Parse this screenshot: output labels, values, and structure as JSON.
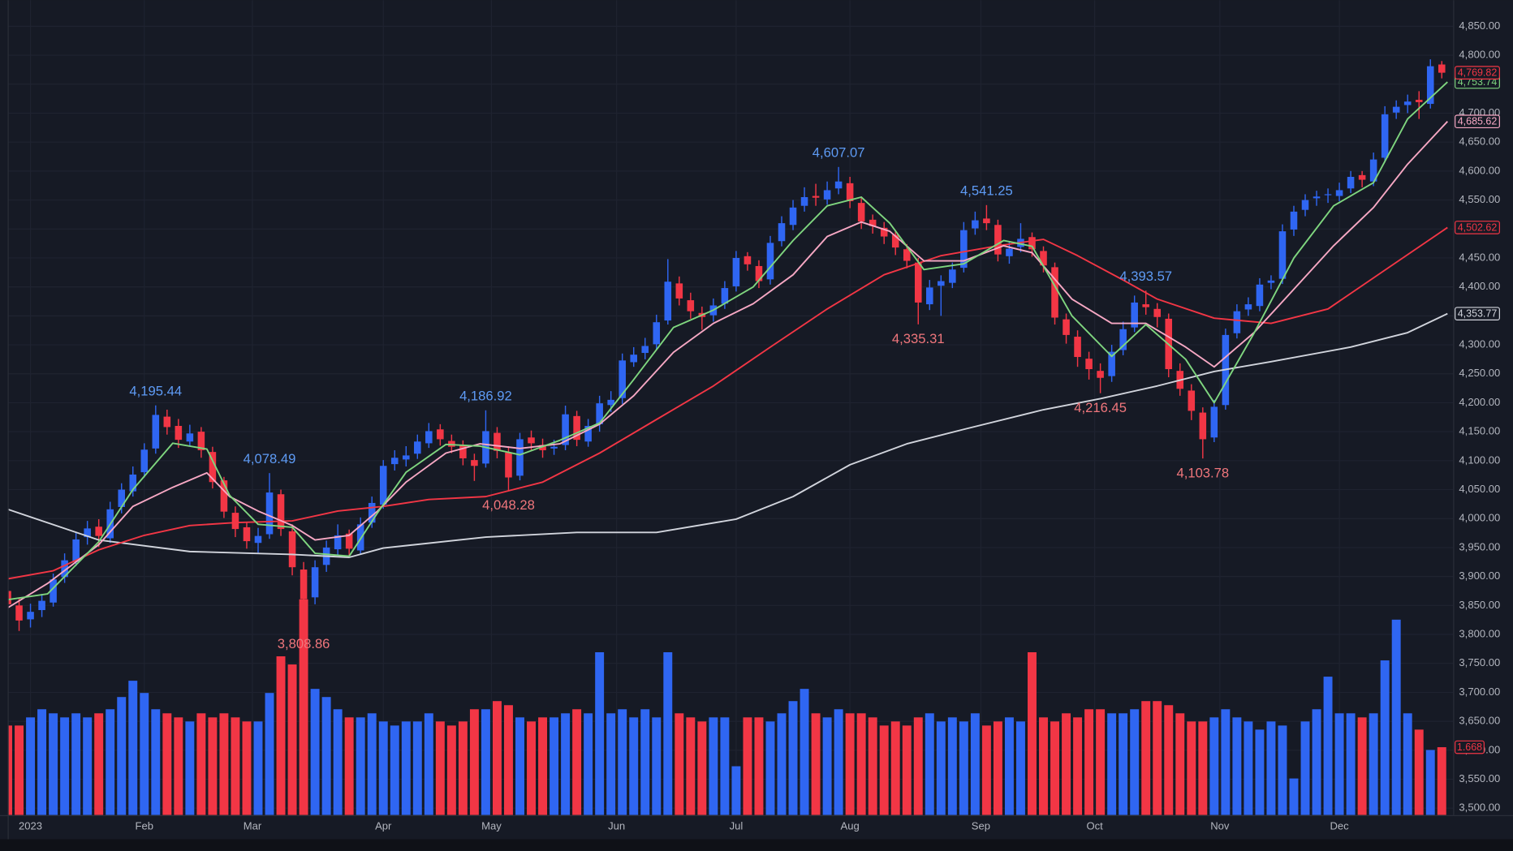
{
  "chart_data": {
    "type": "candlestick",
    "xlim": [
      -4,
      250
    ],
    "ylim": [
      3488,
      4895
    ],
    "grid": true,
    "up_color": "#2f66f2",
    "down_color": "#f23645",
    "xticks": [
      {
        "value": 0,
        "label": "2023"
      },
      {
        "value": 20,
        "label": "Feb"
      },
      {
        "value": 39,
        "label": "Mar"
      },
      {
        "value": 62,
        "label": "Apr"
      },
      {
        "value": 81,
        "label": "May"
      },
      {
        "value": 103,
        "label": "Jun"
      },
      {
        "value": 124,
        "label": "Jul"
      },
      {
        "value": 144,
        "label": "Aug"
      },
      {
        "value": 167,
        "label": "Sep"
      },
      {
        "value": 187,
        "label": "Oct"
      },
      {
        "value": 209,
        "label": "Nov"
      },
      {
        "value": 230,
        "label": "Dec"
      }
    ],
    "yticks": [
      {
        "value": 3500,
        "label": "3,500.00"
      },
      {
        "value": 3550,
        "label": "3,550.00"
      },
      {
        "value": 3600,
        "label": "3,600.00"
      },
      {
        "value": 3650,
        "label": "3,650.00"
      },
      {
        "value": 3700,
        "label": "3,700.00"
      },
      {
        "value": 3750,
        "label": "3,750.00"
      },
      {
        "value": 3800,
        "label": "3,800.00"
      },
      {
        "value": 3850,
        "label": "3,850.00"
      },
      {
        "value": 3900,
        "label": "3,900.00"
      },
      {
        "value": 3950,
        "label": "3,950.00"
      },
      {
        "value": 4000,
        "label": "4,000.00"
      },
      {
        "value": 4050,
        "label": "4,050.00"
      },
      {
        "value": 4100,
        "label": "4,100.00"
      },
      {
        "value": 4150,
        "label": "4,150.00"
      },
      {
        "value": 4200,
        "label": "4,200.00"
      },
      {
        "value": 4250,
        "label": "4,250.00"
      },
      {
        "value": 4300,
        "label": "4,300.00"
      },
      {
        "value": 4350,
        "label": "4,350.00"
      },
      {
        "value": 4400,
        "label": "4,400.00"
      },
      {
        "value": 4450,
        "label": "4,450.00"
      },
      {
        "value": 4500,
        "label": "4,500.00"
      },
      {
        "value": 4550,
        "label": "4,550.00"
      },
      {
        "value": 4600,
        "label": "4,600.00"
      },
      {
        "value": 4650,
        "label": "4,650.00"
      },
      {
        "value": 4700,
        "label": "4,700.00"
      },
      {
        "value": 4750,
        "label": "4,750.00"
      },
      {
        "value": 4800,
        "label": "4,800.00"
      },
      {
        "value": 4850,
        "label": "4,850.00"
      }
    ],
    "candles": {
      "x": [
        -4,
        -2,
        0,
        2,
        4,
        6,
        8,
        10,
        12,
        14,
        16,
        18,
        20,
        22,
        24,
        26,
        28,
        30,
        32,
        34,
        36,
        38,
        40,
        42,
        44,
        46,
        48,
        50,
        52,
        54,
        56,
        58,
        60,
        62,
        64,
        66,
        68,
        70,
        72,
        74,
        76,
        78,
        80,
        82,
        84,
        86,
        88,
        90,
        92,
        94,
        96,
        98,
        100,
        102,
        104,
        106,
        108,
        110,
        112,
        114,
        116,
        118,
        120,
        122,
        124,
        126,
        128,
        130,
        132,
        134,
        136,
        138,
        140,
        142,
        144,
        146,
        148,
        150,
        152,
        154,
        156,
        158,
        160,
        162,
        164,
        166,
        168,
        170,
        172,
        174,
        176,
        178,
        180,
        182,
        184,
        186,
        188,
        190,
        192,
        194,
        196,
        198,
        200,
        202,
        204,
        206,
        208,
        210,
        212,
        214,
        216,
        218,
        220,
        222,
        224,
        226,
        228,
        230,
        232,
        234,
        236,
        238,
        240,
        242,
        244,
        246,
        248
      ],
      "open": [
        3875,
        3850,
        3826,
        3842,
        3855,
        3899,
        3925,
        3968,
        3986,
        3966,
        4020,
        4047,
        4080,
        4121,
        4176,
        4160,
        4133,
        4150,
        4115,
        4066,
        4010,
        3985,
        3958,
        3973,
        4042,
        3978,
        3912,
        3864,
        3920,
        3947,
        3974,
        3945,
        3993,
        4024,
        4094,
        4102,
        4112,
        4130,
        4154,
        4134,
        4127,
        4101,
        4095,
        4148,
        4114,
        4074,
        4140,
        4127,
        4121,
        4127,
        4177,
        4133,
        4163,
        4196,
        4208,
        4270,
        4286,
        4301,
        4342,
        4406,
        4377,
        4355,
        4351,
        4371,
        4401,
        4453,
        4436,
        4413,
        4479,
        4507,
        4540,
        4557,
        4551,
        4570,
        4579,
        4545,
        4516,
        4502,
        4490,
        4465,
        4442,
        4370,
        4402,
        4407,
        4433,
        4501,
        4518,
        4507,
        4453,
        4469,
        4486,
        4462,
        4434,
        4344,
        4314,
        4276,
        4255,
        4246,
        4291,
        4330,
        4370,
        4362,
        4345,
        4255,
        4221,
        4183,
        4140,
        4196,
        4320,
        4361,
        4367,
        4407,
        4414,
        4499,
        4533,
        4553,
        4559,
        4557,
        4570,
        4593,
        4582,
        4623,
        4701,
        4714,
        4723,
        4716,
        4784
      ],
      "high": [
        3884,
        3862,
        3853,
        3870,
        3905,
        3940,
        3975,
        3996,
        3999,
        4029,
        4061,
        4090,
        4130,
        4195.44,
        4188,
        4172,
        4162,
        4158,
        4124,
        4072,
        4021,
        3993,
        3984,
        4078.49,
        4050,
        3990,
        3925,
        3928,
        3962,
        3990,
        3981,
        4002,
        4038,
        4101,
        4118,
        4125,
        4145,
        4165,
        4163,
        4145,
        4135,
        4112,
        4186.92,
        4158,
        4125,
        4148,
        4152,
        4138,
        4136,
        4195,
        4186,
        4172,
        4212,
        4220,
        4285,
        4296,
        4312,
        4352,
        4448,
        4418,
        4390,
        4366,
        4380,
        4410,
        4462,
        4460,
        4446,
        4488,
        4522,
        4550,
        4572,
        4578,
        4582,
        4607.07,
        4590,
        4556,
        4525,
        4512,
        4498,
        4474,
        4450,
        4412,
        4420,
        4442,
        4512,
        4530,
        4541.25,
        4516,
        4478,
        4510,
        4494,
        4470,
        4442,
        4354,
        4325,
        4288,
        4268,
        4300,
        4340,
        4385,
        4393.57,
        4372,
        4354,
        4268,
        4232,
        4192,
        4205,
        4328,
        4370,
        4382,
        4415,
        4420,
        4508,
        4540,
        4560,
        4566,
        4570,
        4580,
        4600,
        4600,
        4632,
        4712,
        4722,
        4732,
        4738,
        4793,
        4790
      ],
      "low": [
        3841,
        3806,
        3812,
        3830,
        3848,
        3889,
        3918,
        3955,
        3951,
        3958,
        4009,
        4038,
        4071,
        4112,
        4145,
        4122,
        4125,
        4105,
        4052,
        4001,
        3968,
        3948,
        3941,
        3965,
        3970,
        3902,
        3808.86,
        3852,
        3908,
        3938,
        3935,
        3939,
        3984,
        4017,
        4083,
        4090,
        4103,
        4122,
        4126,
        4113,
        4092,
        4065,
        4088,
        4104,
        4048.28,
        4066,
        4118,
        4105,
        4110,
        4118,
        4125,
        4124,
        4150,
        4184,
        4198,
        4262,
        4275,
        4292,
        4335,
        4368,
        4345,
        4326,
        4340,
        4362,
        4392,
        4428,
        4398,
        4404,
        4470,
        4498,
        4530,
        4540,
        4542,
        4560,
        4536,
        4500,
        4492,
        4474,
        4455,
        4432,
        4335.31,
        4360,
        4350,
        4398,
        4425,
        4490,
        4498,
        4444,
        4440,
        4460,
        4452,
        4425,
        4335,
        4302,
        4262,
        4240,
        4216.45,
        4236,
        4282,
        4322,
        4352,
        4330,
        4244,
        4212,
        4170,
        4103.78,
        4132,
        4188,
        4311,
        4350,
        4358,
        4396,
        4405,
        4488,
        4522,
        4540,
        4545,
        4548,
        4562,
        4572,
        4574,
        4615,
        4690,
        4700,
        4690,
        4708,
        4760
      ],
      "close": [
        3852,
        3824,
        3839,
        3858,
        3895,
        3928,
        3964,
        3983,
        3970,
        4016,
        4050,
        4076,
        4119,
        4179,
        4158,
        4136,
        4147,
        4118,
        4063,
        4012,
        3982,
        3961,
        3970,
        4045,
        3982,
        3916,
        3861,
        3916,
        3950,
        3971,
        3948,
        3990,
        4027,
        4091,
        4105,
        4109,
        4133,
        4151,
        4137,
        4124,
        4104,
        4091,
        4151,
        4117,
        4071,
        4137,
        4130,
        4118,
        4124,
        4180,
        4136,
        4160,
        4199,
        4205,
        4273,
        4283,
        4298,
        4339,
        4409,
        4380,
        4358,
        4348,
        4368,
        4398,
        4450,
        4439,
        4410,
        4476,
        4510,
        4537,
        4555,
        4554,
        4567,
        4582,
        4548,
        4513,
        4505,
        4487,
        4468,
        4445,
        4373,
        4399,
        4410,
        4430,
        4498,
        4515,
        4510,
        4456,
        4466,
        4483,
        4465,
        4437,
        4347,
        4317,
        4279,
        4258,
        4243,
        4288,
        4327,
        4373,
        4365,
        4348,
        4258,
        4224,
        4186,
        4137,
        4193,
        4317,
        4358,
        4370,
        4404,
        4411,
        4496,
        4530,
        4550,
        4556,
        4560,
        4567,
        4590,
        4585,
        4620,
        4698,
        4711,
        4720,
        4719,
        4781,
        4769.82
      ],
      "close_label": "4,769.82"
    },
    "volume": {
      "ylim": [
        0,
        5.4
      ],
      "values": [
        2.2,
        2.2,
        2.4,
        2.6,
        2.5,
        2.4,
        2.5,
        2.4,
        2.5,
        2.6,
        2.9,
        3.3,
        3.0,
        2.6,
        2.5,
        2.4,
        2.3,
        2.5,
        2.4,
        2.5,
        2.4,
        2.3,
        2.3,
        3.0,
        3.9,
        3.7,
        5.3,
        3.1,
        2.9,
        2.6,
        2.4,
        2.4,
        2.5,
        2.3,
        2.2,
        2.3,
        2.3,
        2.5,
        2.3,
        2.2,
        2.3,
        2.6,
        2.6,
        2.8,
        2.7,
        2.4,
        2.3,
        2.4,
        2.4,
        2.5,
        2.6,
        2.5,
        4.0,
        2.5,
        2.6,
        2.4,
        2.6,
        2.4,
        4.0,
        2.5,
        2.4,
        2.3,
        2.4,
        2.4,
        1.2,
        2.4,
        2.4,
        2.3,
        2.5,
        2.8,
        3.1,
        2.5,
        2.4,
        2.6,
        2.5,
        2.5,
        2.4,
        2.2,
        2.3,
        2.2,
        2.4,
        2.5,
        2.3,
        2.4,
        2.3,
        2.5,
        2.2,
        2.3,
        2.4,
        2.3,
        4.0,
        2.4,
        2.3,
        2.5,
        2.4,
        2.6,
        2.6,
        2.5,
        2.5,
        2.6,
        2.8,
        2.8,
        2.7,
        2.5,
        2.3,
        2.3,
        2.4,
        2.6,
        2.4,
        2.3,
        2.1,
        2.3,
        2.2,
        0.9,
        2.3,
        2.6,
        3.4,
        2.5,
        2.5,
        2.4,
        2.5,
        3.8,
        4.8,
        2.5,
        2.1,
        1.6,
        1.668
      ]
    },
    "moving_averages": [
      {
        "color": "#d1d4dc",
        "x": [
          -4,
          12,
          28,
          46,
          56,
          62,
          80,
          96,
          110,
          124,
          134,
          144,
          154,
          164,
          178,
          188,
          198,
          208,
          218,
          232,
          242,
          249
        ],
        "values": [
          4016,
          3963,
          3943,
          3938,
          3933,
          3949,
          3968,
          3976,
          3976,
          3999,
          4038,
          4093,
          4129,
          4154,
          4188,
          4207,
          4229,
          4254,
          4271,
          4296,
          4321,
          4353.77
        ],
        "last_label": "4,353.77"
      },
      {
        "color": "#f23645",
        "x": [
          -4,
          4,
          12,
          20,
          28,
          36,
          46,
          54,
          62,
          70,
          80,
          90,
          100,
          110,
          120,
          130,
          140,
          150,
          160,
          170,
          178,
          184,
          192,
          198,
          208,
          218,
          228,
          238,
          249
        ],
        "values": [
          3896,
          3910,
          3946,
          3971,
          3988,
          3993,
          3996,
          4013,
          4021,
          4033,
          4038,
          4063,
          4113,
          4171,
          4229,
          4296,
          4362,
          4421,
          4454,
          4471,
          4482,
          4454,
          4412,
          4379,
          4346,
          4337,
          4362,
          4429,
          4502.62
        ],
        "last_label": "4,502.62"
      },
      {
        "color": "#f7a8c4",
        "x": [
          -4,
          3,
          12,
          18,
          25,
          31,
          35,
          40,
          46,
          50,
          56,
          61,
          66,
          73,
          79,
          86,
          93,
          100,
          106,
          113,
          120,
          127,
          134,
          140,
          146,
          151,
          157,
          164,
          171,
          176,
          183,
          190,
          196,
          203,
          208,
          215,
          222,
          229,
          236,
          242,
          249
        ],
        "values": [
          3846,
          3888,
          3955,
          4021,
          4054,
          4079,
          4038,
          4013,
          3988,
          3963,
          3971,
          4013,
          4063,
          4113,
          4129,
          4121,
          4129,
          4163,
          4212,
          4287,
          4337,
          4371,
          4421,
          4487,
          4512,
          4496,
          4445,
          4445,
          4471,
          4459,
          4379,
          4337,
          4337,
          4296,
          4262,
          4321,
          4396,
          4471,
          4537,
          4612,
          4685.62
        ],
        "last_label": "4,685.62"
      },
      {
        "color": "#7fd67f",
        "x": [
          -4,
          3,
          12,
          18,
          25,
          31,
          35,
          40,
          46,
          50,
          56,
          61,
          66,
          73,
          79,
          86,
          93,
          100,
          106,
          113,
          120,
          127,
          134,
          140,
          146,
          151,
          157,
          164,
          171,
          176,
          183,
          190,
          196,
          203,
          208,
          215,
          222,
          229,
          236,
          242,
          249
        ],
        "values": [
          3860,
          3870,
          3960,
          4050,
          4130,
          4120,
          4040,
          3990,
          3985,
          3940,
          3935,
          4010,
          4080,
          4128,
          4125,
          4110,
          4135,
          4165,
          4240,
          4330,
          4360,
          4400,
          4480,
          4540,
          4555,
          4510,
          4430,
          4440,
          4480,
          4470,
          4350,
          4280,
          4335,
          4275,
          4200,
          4320,
          4450,
          4540,
          4580,
          4690,
          4753.74
        ],
        "last_label": "4,753.74"
      }
    ],
    "annotations": [
      {
        "x": 22,
        "value": 4195.44,
        "label": "4,195.44",
        "color": "#5e9bf5",
        "position": "above"
      },
      {
        "x": 42,
        "value": 4078.49,
        "label": "4,078.49",
        "color": "#5e9bf5",
        "position": "above"
      },
      {
        "x": 48,
        "value": 3808.86,
        "label": "3,808.86",
        "color": "#f0767c",
        "position": "below"
      },
      {
        "x": 80,
        "value": 4186.92,
        "label": "4,186.92",
        "color": "#5e9bf5",
        "position": "above"
      },
      {
        "x": 84,
        "value": 4048.28,
        "label": "4,048.28",
        "color": "#f0767c",
        "position": "below"
      },
      {
        "x": 142,
        "value": 4607.07,
        "label": "4,607.07",
        "color": "#5e9bf5",
        "position": "above"
      },
      {
        "x": 156,
        "value": 4335.31,
        "label": "4,335.31",
        "color": "#f0767c",
        "position": "below"
      },
      {
        "x": 168,
        "value": 4541.25,
        "label": "4,541.25",
        "color": "#5e9bf5",
        "position": "above"
      },
      {
        "x": 188,
        "value": 4216.45,
        "label": "4,216.45",
        "color": "#f0767c",
        "position": "below"
      },
      {
        "x": 196,
        "value": 4393.57,
        "label": "4,393.57",
        "color": "#5e9bf5",
        "position": "above"
      },
      {
        "x": 206,
        "value": 4103.78,
        "label": "4,103.78",
        "color": "#f0767c",
        "position": "below"
      }
    ]
  }
}
